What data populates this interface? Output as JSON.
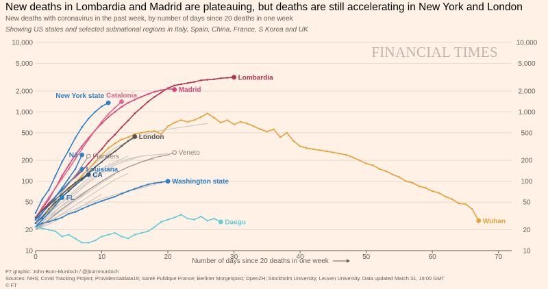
{
  "header": {
    "title": "New deaths in Lombardia and Madrid are plateauing, but deaths are still accelerating in New York and London",
    "subtitle": "New deaths with coronavirus in the past week, by number of days since 20 deaths in one week",
    "subtitle2": "Showing US states and selected subnational regions in Italy, Spain, China, France, S Korea and UK"
  },
  "watermark": "FINANCIAL TIMES",
  "footer": {
    "credit": "FT graphic: John Burn-Murdoch / @jburnmurdoch",
    "sources": "Sources: NHS; Covid Tracking Project; Providencialdata19; Santé Publique France; Berliner Morgenpost; OpenZH; Stockholm University; Leuven University. Data updated March 31, 19:00 GMT",
    "copyright": "© FT"
  },
  "colors": {
    "background": "#fff1e5",
    "grid": "#e3d8cd",
    "background_series": "#cfc8c2",
    "lombardia": "#b5314f",
    "madrid": "#d8477b",
    "catalonia": "#e0658f",
    "new_york": "#2f7fc7",
    "washington": "#2f7fc7",
    "nj": "#2f7fc7",
    "louisiana": "#2f7fc7",
    "fl": "#2f7fc7",
    "ca": "#1f5f99",
    "wuhan": "#e8a23a",
    "london": "#555250",
    "daegu": "#62cdd6",
    "veneto": "#999390",
    "flanders": "#999390"
  },
  "chart_data": {
    "type": "line",
    "xlabel": "Number of days since 20 deaths in one week",
    "xlim": [
      0,
      72
    ],
    "xticks": [
      0,
      10,
      20,
      30,
      40,
      50,
      60,
      70
    ],
    "ylim": [
      10,
      10000
    ],
    "yscale": "log",
    "yticks": [
      10,
      20,
      50,
      100,
      200,
      500,
      1000,
      2000,
      5000,
      10000
    ],
    "ytick_labels": [
      "10",
      "20",
      "50",
      "100",
      "200",
      "500",
      "1,000",
      "2,000",
      "5,000",
      "10,000"
    ],
    "grid": true,
    "series": [
      {
        "name": "Wuhan",
        "key": "wuhan",
        "label_pos": "right",
        "x": [
          0,
          1,
          2,
          3,
          4,
          5,
          6,
          7,
          8,
          9,
          10,
          11,
          12,
          13,
          14,
          15,
          16,
          17,
          18,
          19,
          20,
          21,
          22,
          23,
          24,
          25,
          26,
          27,
          28,
          29,
          30,
          31,
          32,
          33,
          34,
          35,
          36,
          37,
          38,
          39,
          40,
          41,
          42,
          43,
          44,
          45,
          46,
          47,
          48,
          49,
          50,
          51,
          52,
          53,
          54,
          55,
          56,
          57,
          58,
          59,
          60,
          61,
          62,
          63,
          64,
          65,
          66,
          67
        ],
        "y": [
          25,
          30,
          38,
          48,
          58,
          75,
          95,
          120,
          150,
          190,
          240,
          300,
          350,
          400,
          430,
          480,
          500,
          520,
          530,
          480,
          620,
          700,
          760,
          720,
          760,
          840,
          950,
          820,
          700,
          760,
          660,
          720,
          680,
          620,
          560,
          520,
          560,
          430,
          500,
          380,
          320,
          300,
          290,
          280,
          270,
          260,
          250,
          240,
          220,
          200,
          180,
          170,
          150,
          140,
          125,
          115,
          100,
          95,
          85,
          80,
          72,
          68,
          60,
          55,
          48,
          47,
          40,
          27
        ]
      },
      {
        "name": "Lombardia",
        "key": "lombardia",
        "label_pos": "right",
        "x": [
          0,
          1,
          2,
          3,
          4,
          5,
          6,
          7,
          8,
          9,
          10,
          11,
          12,
          13,
          14,
          15,
          16,
          17,
          18,
          19,
          20,
          21,
          22,
          23,
          24,
          25,
          26,
          27,
          28,
          29,
          30
        ],
        "y": [
          30,
          38,
          48,
          60,
          75,
          95,
          115,
          140,
          180,
          230,
          290,
          380,
          470,
          600,
          750,
          950,
          1150,
          1400,
          1650,
          1900,
          2200,
          2400,
          2500,
          2600,
          2700,
          2850,
          2900,
          2950,
          3050,
          3100,
          3150
        ]
      },
      {
        "name": "Madrid",
        "key": "madrid",
        "label_pos": "right",
        "x": [
          0,
          1,
          2,
          3,
          4,
          5,
          6,
          7,
          8,
          9,
          10,
          11,
          12,
          13,
          14,
          15,
          16,
          17,
          18,
          19,
          20,
          21
        ],
        "y": [
          28,
          40,
          55,
          80,
          120,
          170,
          240,
          320,
          420,
          540,
          680,
          840,
          1000,
          1180,
          1350,
          1500,
          1650,
          1800,
          1950,
          2050,
          2150,
          2100
        ]
      },
      {
        "name": "Catalonia",
        "key": "catalonia",
        "label_pos": "top",
        "x": [
          0,
          1,
          2,
          3,
          4,
          5,
          6,
          7,
          8,
          9,
          10,
          11,
          12,
          13
        ],
        "y": [
          30,
          42,
          58,
          80,
          110,
          150,
          210,
          290,
          400,
          540,
          720,
          930,
          1150,
          1400
        ]
      },
      {
        "name": "New York state",
        "key": "new_york",
        "label_pos": "top-left",
        "x": [
          0,
          1,
          2,
          3,
          4,
          5,
          6,
          7,
          8,
          9,
          10,
          11
        ],
        "y": [
          35,
          55,
          75,
          120,
          190,
          280,
          420,
          600,
          800,
          1000,
          1200,
          1350
        ]
      },
      {
        "name": "NJ",
        "key": "nj",
        "label_pos": "left",
        "x": [
          0,
          1,
          2,
          3,
          4,
          5,
          6,
          7
        ],
        "y": [
          28,
          35,
          45,
          60,
          80,
          110,
          150,
          240
        ]
      },
      {
        "name": "Louisiana",
        "key": "louisiana",
        "label_pos": "right",
        "x": [
          0,
          1,
          2,
          3,
          4,
          5,
          6,
          7
        ],
        "y": [
          25,
          35,
          45,
          60,
          75,
          95,
          120,
          150
        ]
      },
      {
        "name": "CA",
        "key": "ca",
        "label_pos": "right",
        "x": [
          0,
          1,
          2,
          3,
          4,
          5,
          6,
          7,
          8
        ],
        "y": [
          25,
          30,
          40,
          50,
          60,
          72,
          88,
          105,
          125
        ]
      },
      {
        "name": "FL",
        "key": "fl",
        "label_pos": "right",
        "x": [
          0,
          1,
          2,
          3,
          4
        ],
        "y": [
          22,
          28,
          35,
          45,
          58
        ]
      },
      {
        "name": "London",
        "key": "london",
        "label_pos": "right",
        "x": [
          0,
          1,
          2,
          3,
          4,
          5,
          6,
          7,
          8,
          9,
          10,
          11,
          12,
          13,
          14,
          15
        ],
        "y": [
          30,
          38,
          45,
          55,
          65,
          80,
          95,
          110,
          130,
          160,
          190,
          230,
          270,
          320,
          380,
          440
        ]
      },
      {
        "name": "Washington state",
        "key": "washington",
        "label_pos": "right",
        "x": [
          0,
          1,
          2,
          3,
          4,
          5,
          6,
          7,
          8,
          9,
          10,
          11,
          12,
          13,
          14,
          15,
          16,
          17,
          18,
          19,
          20
        ],
        "y": [
          22,
          25,
          26,
          28,
          30,
          34,
          36,
          40,
          44,
          48,
          52,
          56,
          60,
          66,
          72,
          78,
          84,
          90,
          94,
          97,
          100
        ]
      },
      {
        "name": "Veneto",
        "key": "veneto",
        "label_pos": "right",
        "light": true,
        "x": [
          0,
          2,
          4,
          6,
          8,
          10,
          12,
          14,
          16,
          18,
          20,
          21
        ],
        "y": [
          20,
          28,
          40,
          55,
          75,
          100,
          130,
          160,
          190,
          220,
          240,
          260
        ]
      },
      {
        "name": "Flanders",
        "key": "flanders",
        "label_pos": "right",
        "light": true,
        "x": [
          0,
          2,
          4,
          6,
          8
        ],
        "y": [
          25,
          40,
          70,
          120,
          230
        ]
      },
      {
        "name": "Daegu",
        "key": "daegu",
        "label_pos": "right",
        "x": [
          0,
          1,
          2,
          3,
          4,
          5,
          6,
          7,
          8,
          9,
          10,
          11,
          12,
          13,
          14,
          15,
          16,
          17,
          18,
          19,
          20,
          21,
          22,
          23,
          24,
          25,
          26,
          27,
          28
        ],
        "y": [
          22,
          21,
          20,
          19,
          16,
          17,
          15,
          13,
          13,
          14,
          16,
          17,
          18,
          16,
          15,
          17,
          18,
          19,
          22,
          26,
          28,
          30,
          33,
          29,
          28,
          31,
          27,
          29,
          26
        ]
      }
    ],
    "background_series": [
      {
        "x": [
          0,
          2,
          4,
          6,
          8,
          10,
          12,
          14,
          16,
          18,
          20,
          22,
          24,
          26
        ],
        "y": [
          24,
          38,
          60,
          90,
          150,
          220,
          300,
          380,
          450,
          520,
          560,
          600,
          640,
          680
        ]
      },
      {
        "x": [
          0,
          2,
          4,
          6,
          8,
          10,
          12,
          14,
          16,
          18,
          20
        ],
        "y": [
          22,
          30,
          45,
          65,
          95,
          130,
          170,
          200,
          230,
          240,
          250
        ]
      },
      {
        "x": [
          0,
          2,
          4,
          6,
          8,
          10,
          12,
          14,
          16
        ],
        "y": [
          26,
          36,
          50,
          70,
          100,
          140,
          180,
          210,
          230
        ]
      },
      {
        "x": [
          0,
          2,
          4,
          6,
          8,
          10,
          12,
          14
        ],
        "y": [
          20,
          26,
          34,
          45,
          60,
          80,
          105,
          130
        ]
      },
      {
        "x": [
          0,
          2,
          4,
          6,
          8,
          10,
          12
        ],
        "y": [
          21,
          28,
          38,
          52,
          70,
          95,
          125
        ]
      },
      {
        "x": [
          0,
          2,
          4,
          6,
          8,
          10,
          12,
          14,
          16,
          18
        ],
        "y": [
          23,
          32,
          44,
          58,
          76,
          100,
          130,
          160,
          190,
          210
        ]
      },
      {
        "x": [
          0,
          2,
          4,
          6,
          8,
          10
        ],
        "y": [
          20,
          24,
          30,
          38,
          50,
          65
        ]
      },
      {
        "x": [
          0,
          2,
          4,
          6,
          8,
          10,
          12,
          14,
          16,
          18,
          20
        ],
        "y": [
          22,
          27,
          33,
          40,
          48,
          56,
          64,
          72,
          80,
          90,
          100
        ]
      },
      {
        "x": [
          0,
          2,
          4,
          6,
          8
        ],
        "y": [
          24,
          30,
          40,
          55,
          70
        ]
      },
      {
        "x": [
          0,
          2,
          4,
          6,
          8,
          10,
          12,
          14
        ],
        "y": [
          22,
          34,
          50,
          75,
          110,
          150,
          190,
          230
        ]
      }
    ]
  }
}
